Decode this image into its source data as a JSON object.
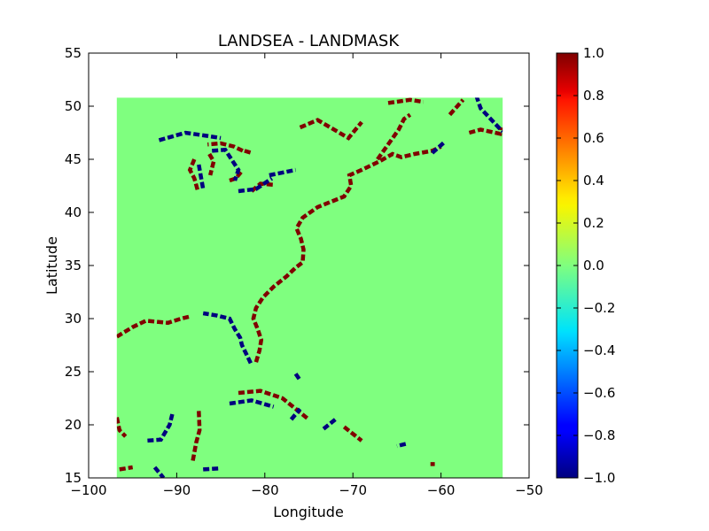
{
  "chart_data": {
    "type": "heatmap",
    "title": "LANDSEA - LANDMASK",
    "xlabel": "Longitude",
    "ylabel": "Latitude",
    "xlim": [
      -100,
      -50
    ],
    "ylim": [
      15,
      55
    ],
    "xticks": [
      -100,
      -90,
      -80,
      -70,
      -60,
      -50
    ],
    "xtick_labels": [
      "−100",
      "−90",
      "−80",
      "−70",
      "−60",
      "−50"
    ],
    "yticks": [
      15,
      20,
      25,
      30,
      35,
      40,
      45,
      50,
      55
    ],
    "ytick_labels": [
      "15",
      "20",
      "25",
      "30",
      "35",
      "40",
      "45",
      "50",
      "55"
    ],
    "grid": false,
    "data_extent": {
      "lon": [
        -96.8,
        -53.0
      ],
      "lat": [
        15.0,
        50.8
      ]
    },
    "background_value": 0.0,
    "colormap": "jet",
    "colorbar": {
      "range": [
        -1.0,
        1.0
      ],
      "ticks": [
        1.0,
        0.8,
        0.6,
        0.4,
        0.2,
        0.0,
        -0.2,
        -0.4,
        -0.6,
        -0.8,
        -1.0
      ],
      "tick_labels": [
        "1.0",
        "0.8",
        "0.6",
        "0.4",
        "0.2",
        "0.0",
        "−0.2",
        "−0.4",
        "−0.6",
        "−0.8",
        "−1.0"
      ],
      "placement": "right"
    },
    "colors": {
      "value_pos1": "#800000",
      "value_zero": "#7fff7f",
      "value_neg1": "#00007f"
    },
    "coastline_changes": {
      "value_pos1": [
        [
          [
            -81.0,
            25.9
          ],
          [
            -80.6,
            27.0
          ],
          [
            -80.4,
            28.0
          ],
          [
            -80.8,
            29.0
          ],
          [
            -81.3,
            30.0
          ],
          [
            -81.0,
            31.0
          ],
          [
            -80.2,
            32.0
          ],
          [
            -79.0,
            33.0
          ],
          [
            -77.5,
            34.0
          ],
          [
            -76.5,
            34.8
          ],
          [
            -75.7,
            35.3
          ],
          [
            -75.6,
            36.5
          ],
          [
            -75.9,
            37.5
          ],
          [
            -76.4,
            38.5
          ],
          [
            -75.7,
            39.5
          ],
          [
            -74.0,
            40.5
          ],
          [
            -72.5,
            41.0
          ],
          [
            -71.0,
            41.5
          ],
          [
            -70.2,
            42.5
          ],
          [
            -70.4,
            43.5
          ],
          [
            -69.0,
            44.0
          ],
          [
            -67.0,
            44.8
          ],
          [
            -65.5,
            45.5
          ],
          [
            -64.5,
            45.2
          ],
          [
            -63.0,
            45.5
          ],
          [
            -61.0,
            45.8
          ],
          [
            -60.0,
            46.2
          ]
        ],
        [
          [
            -96.8,
            28.3
          ],
          [
            -95.0,
            29.2
          ],
          [
            -93.5,
            29.8
          ],
          [
            -91.0,
            29.6
          ],
          [
            -89.5,
            30.0
          ],
          [
            -88.5,
            30.2
          ]
        ],
        [
          [
            -96.8,
            20.7
          ],
          [
            -96.5,
            19.5
          ],
          [
            -95.8,
            18.9
          ]
        ],
        [
          [
            -87.5,
            21.3
          ],
          [
            -87.4,
            19.5
          ],
          [
            -87.8,
            18.3
          ],
          [
            -88.2,
            16.5
          ]
        ],
        [
          [
            -96.5,
            15.8
          ],
          [
            -95.0,
            16.0
          ]
        ],
        [
          [
            -83.0,
            23.0
          ],
          [
            -80.5,
            23.2
          ],
          [
            -78.0,
            22.5
          ],
          [
            -75.0,
            20.5
          ]
        ],
        [
          [
            -71.0,
            19.8
          ],
          [
            -69.0,
            18.5
          ]
        ],
        [
          [
            -61.2,
            16.3
          ],
          [
            -60.7,
            16.3
          ]
        ],
        [
          [
            -67.2,
            45.0
          ],
          [
            -64.8,
            47.8
          ],
          [
            -64.2,
            48.8
          ],
          [
            -63.5,
            49.2
          ]
        ],
        [
          [
            -56.8,
            47.5
          ],
          [
            -55.5,
            47.8
          ],
          [
            -53.3,
            47.4
          ],
          [
            -53.2,
            48.0
          ]
        ],
        [
          [
            -82.5,
            45.8
          ],
          [
            -83.5,
            46.2
          ],
          [
            -85.0,
            46.5
          ],
          [
            -86.5,
            46.4
          ]
        ],
        [
          [
            -88.0,
            45.0
          ],
          [
            -88.5,
            44.0
          ],
          [
            -88.0,
            43.2
          ],
          [
            -87.6,
            42.0
          ]
        ],
        [
          [
            -86.3,
            45.5
          ],
          [
            -85.8,
            44.8
          ],
          [
            -86.2,
            43.5
          ]
        ],
        [
          [
            -84.0,
            43.0
          ],
          [
            -83.3,
            43.2
          ],
          [
            -82.7,
            43.8
          ]
        ],
        [
          [
            -81.5,
            42.0
          ],
          [
            -80.5,
            42.7
          ],
          [
            -79.0,
            42.6
          ]
        ],
        [
          [
            -76.0,
            48.0
          ],
          [
            -74.0,
            48.7
          ],
          [
            -70.5,
            47.0
          ],
          [
            -69.0,
            48.5
          ]
        ],
        [
          [
            -66.0,
            50.3
          ],
          [
            -63.5,
            50.6
          ],
          [
            -62.0,
            50.4
          ]
        ],
        [
          [
            -59.0,
            49.2
          ],
          [
            -57.5,
            50.6
          ]
        ],
        [
          [
            -82.3,
            45.8
          ],
          [
            -81.5,
            45.6
          ]
        ]
      ],
      "value_neg1": [
        [
          [
            -81.6,
            25.8
          ],
          [
            -82.0,
            26.5
          ],
          [
            -82.6,
            27.5
          ],
          [
            -82.8,
            28.2
          ],
          [
            -83.4,
            29.0
          ],
          [
            -84.0,
            30.0
          ],
          [
            -85.5,
            30.3
          ],
          [
            -87.0,
            30.5
          ]
        ],
        [
          [
            -92.5,
            16.0
          ],
          [
            -91.5,
            15.0
          ]
        ],
        [
          [
            -90.5,
            21.0
          ],
          [
            -90.8,
            20.0
          ],
          [
            -91.8,
            18.6
          ],
          [
            -93.5,
            18.5
          ]
        ],
        [
          [
            -87.0,
            15.8
          ],
          [
            -85.0,
            15.9
          ]
        ],
        [
          [
            -84.0,
            22.0
          ],
          [
            -81.5,
            22.3
          ],
          [
            -79.0,
            21.7
          ]
        ],
        [
          [
            -77.0,
            20.5
          ],
          [
            -76.0,
            21.5
          ]
        ],
        [
          [
            -72.0,
            20.5
          ],
          [
            -73.5,
            19.5
          ]
        ],
        [
          [
            -76.5,
            24.8
          ],
          [
            -76.0,
            24.2
          ]
        ],
        [
          [
            -64.0,
            18.2
          ],
          [
            -65.0,
            18.0
          ]
        ],
        [
          [
            -92.0,
            46.8
          ],
          [
            -89.0,
            47.5
          ],
          [
            -86.5,
            47.2
          ],
          [
            -85.0,
            47.0
          ]
        ],
        [
          [
            -87.5,
            44.5
          ],
          [
            -87.0,
            42.2
          ]
        ],
        [
          [
            -86.0,
            45.8
          ],
          [
            -84.5,
            45.9
          ],
          [
            -83.0,
            44.0
          ],
          [
            -83.4,
            43.0
          ]
        ],
        [
          [
            -83.0,
            42.0
          ],
          [
            -81.0,
            42.2
          ],
          [
            -79.2,
            43.2
          ]
        ],
        [
          [
            -79.5,
            43.5
          ],
          [
            -76.5,
            44.0
          ]
        ],
        [
          [
            -56.0,
            51.0
          ],
          [
            -55.5,
            49.8
          ],
          [
            -53.0,
            47.6
          ]
        ],
        [
          [
            -61.0,
            45.6
          ],
          [
            -59.5,
            46.7
          ]
        ]
      ]
    }
  }
}
